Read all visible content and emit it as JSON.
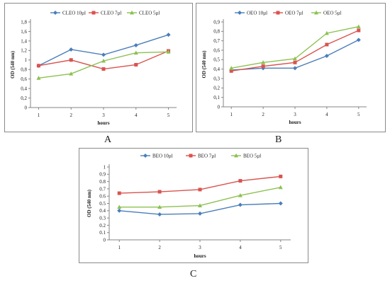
{
  "chart_data": [
    {
      "type": "line",
      "caption": "A",
      "xlabel": "hours",
      "ylabel": "OD (540 nm)",
      "categories": [
        "1",
        "2",
        "3",
        "4",
        "5"
      ],
      "ylim": [
        0,
        1.8
      ],
      "yticks": [
        "0",
        "0,2",
        "0,4",
        "0,6",
        "0,8",
        "1",
        "1,2",
        "1,4",
        "1,6",
        "1,8"
      ],
      "grid": false,
      "legend": "top",
      "series": [
        {
          "name": "CLEO 10µl",
          "color": "#4a7ebb",
          "marker": "diamond",
          "values": [
            0.88,
            1.22,
            1.11,
            1.31,
            1.53
          ]
        },
        {
          "name": "CLEO 7µl",
          "color": "#d9534f",
          "marker": "square",
          "values": [
            0.88,
            1.0,
            0.81,
            0.9,
            1.19
          ]
        },
        {
          "name": "CLEO 5µl",
          "color": "#8cc152",
          "marker": "triangle",
          "values": [
            0.62,
            0.71,
            0.98,
            1.15,
            1.17
          ]
        }
      ]
    },
    {
      "type": "line",
      "caption": "B",
      "xlabel": "hours",
      "ylabel": "OD (540 nm)",
      "categories": [
        "1",
        "2",
        "3",
        "4",
        "5"
      ],
      "ylim": [
        0,
        0.9
      ],
      "yticks": [
        "0",
        "0,1",
        "0,2",
        "0,3",
        "0,4",
        "0,5",
        "0,6",
        "0,7",
        "0,8",
        "0,9"
      ],
      "grid": false,
      "legend": "top",
      "series": [
        {
          "name": "OEO 10µl",
          "color": "#4a7ebb",
          "marker": "diamond",
          "values": [
            0.39,
            0.41,
            0.41,
            0.54,
            0.71
          ]
        },
        {
          "name": "OEO 7µl",
          "color": "#d9534f",
          "marker": "square",
          "values": [
            0.38,
            0.43,
            0.47,
            0.66,
            0.81
          ]
        },
        {
          "name": "OEO 5µl",
          "color": "#8cc152",
          "marker": "triangle",
          "values": [
            0.41,
            0.47,
            0.51,
            0.78,
            0.85
          ]
        }
      ]
    },
    {
      "type": "line",
      "caption": "C",
      "xlabel": "hours",
      "ylabel": "OD (540 nm)",
      "categories": [
        "1",
        "2",
        "3",
        "4",
        "5"
      ],
      "ylim": [
        0,
        1
      ],
      "yticks": [
        "0",
        "0.1",
        "0.2",
        "0.3",
        "0.4",
        "0.5",
        "0.6",
        "0.7",
        "0.8",
        "0.9",
        "1"
      ],
      "grid": false,
      "legend": "top",
      "series": [
        {
          "name": "BEO 10µl",
          "color": "#4a7ebb",
          "marker": "diamond",
          "values": [
            0.4,
            0.35,
            0.36,
            0.48,
            0.5
          ]
        },
        {
          "name": "BEO 7µl",
          "color": "#d9534f",
          "marker": "square",
          "values": [
            0.64,
            0.66,
            0.69,
            0.81,
            0.87
          ]
        },
        {
          "name": "BEO 5µl",
          "color": "#8cc152",
          "marker": "triangle",
          "values": [
            0.45,
            0.45,
            0.47,
            0.61,
            0.72
          ]
        }
      ]
    }
  ]
}
